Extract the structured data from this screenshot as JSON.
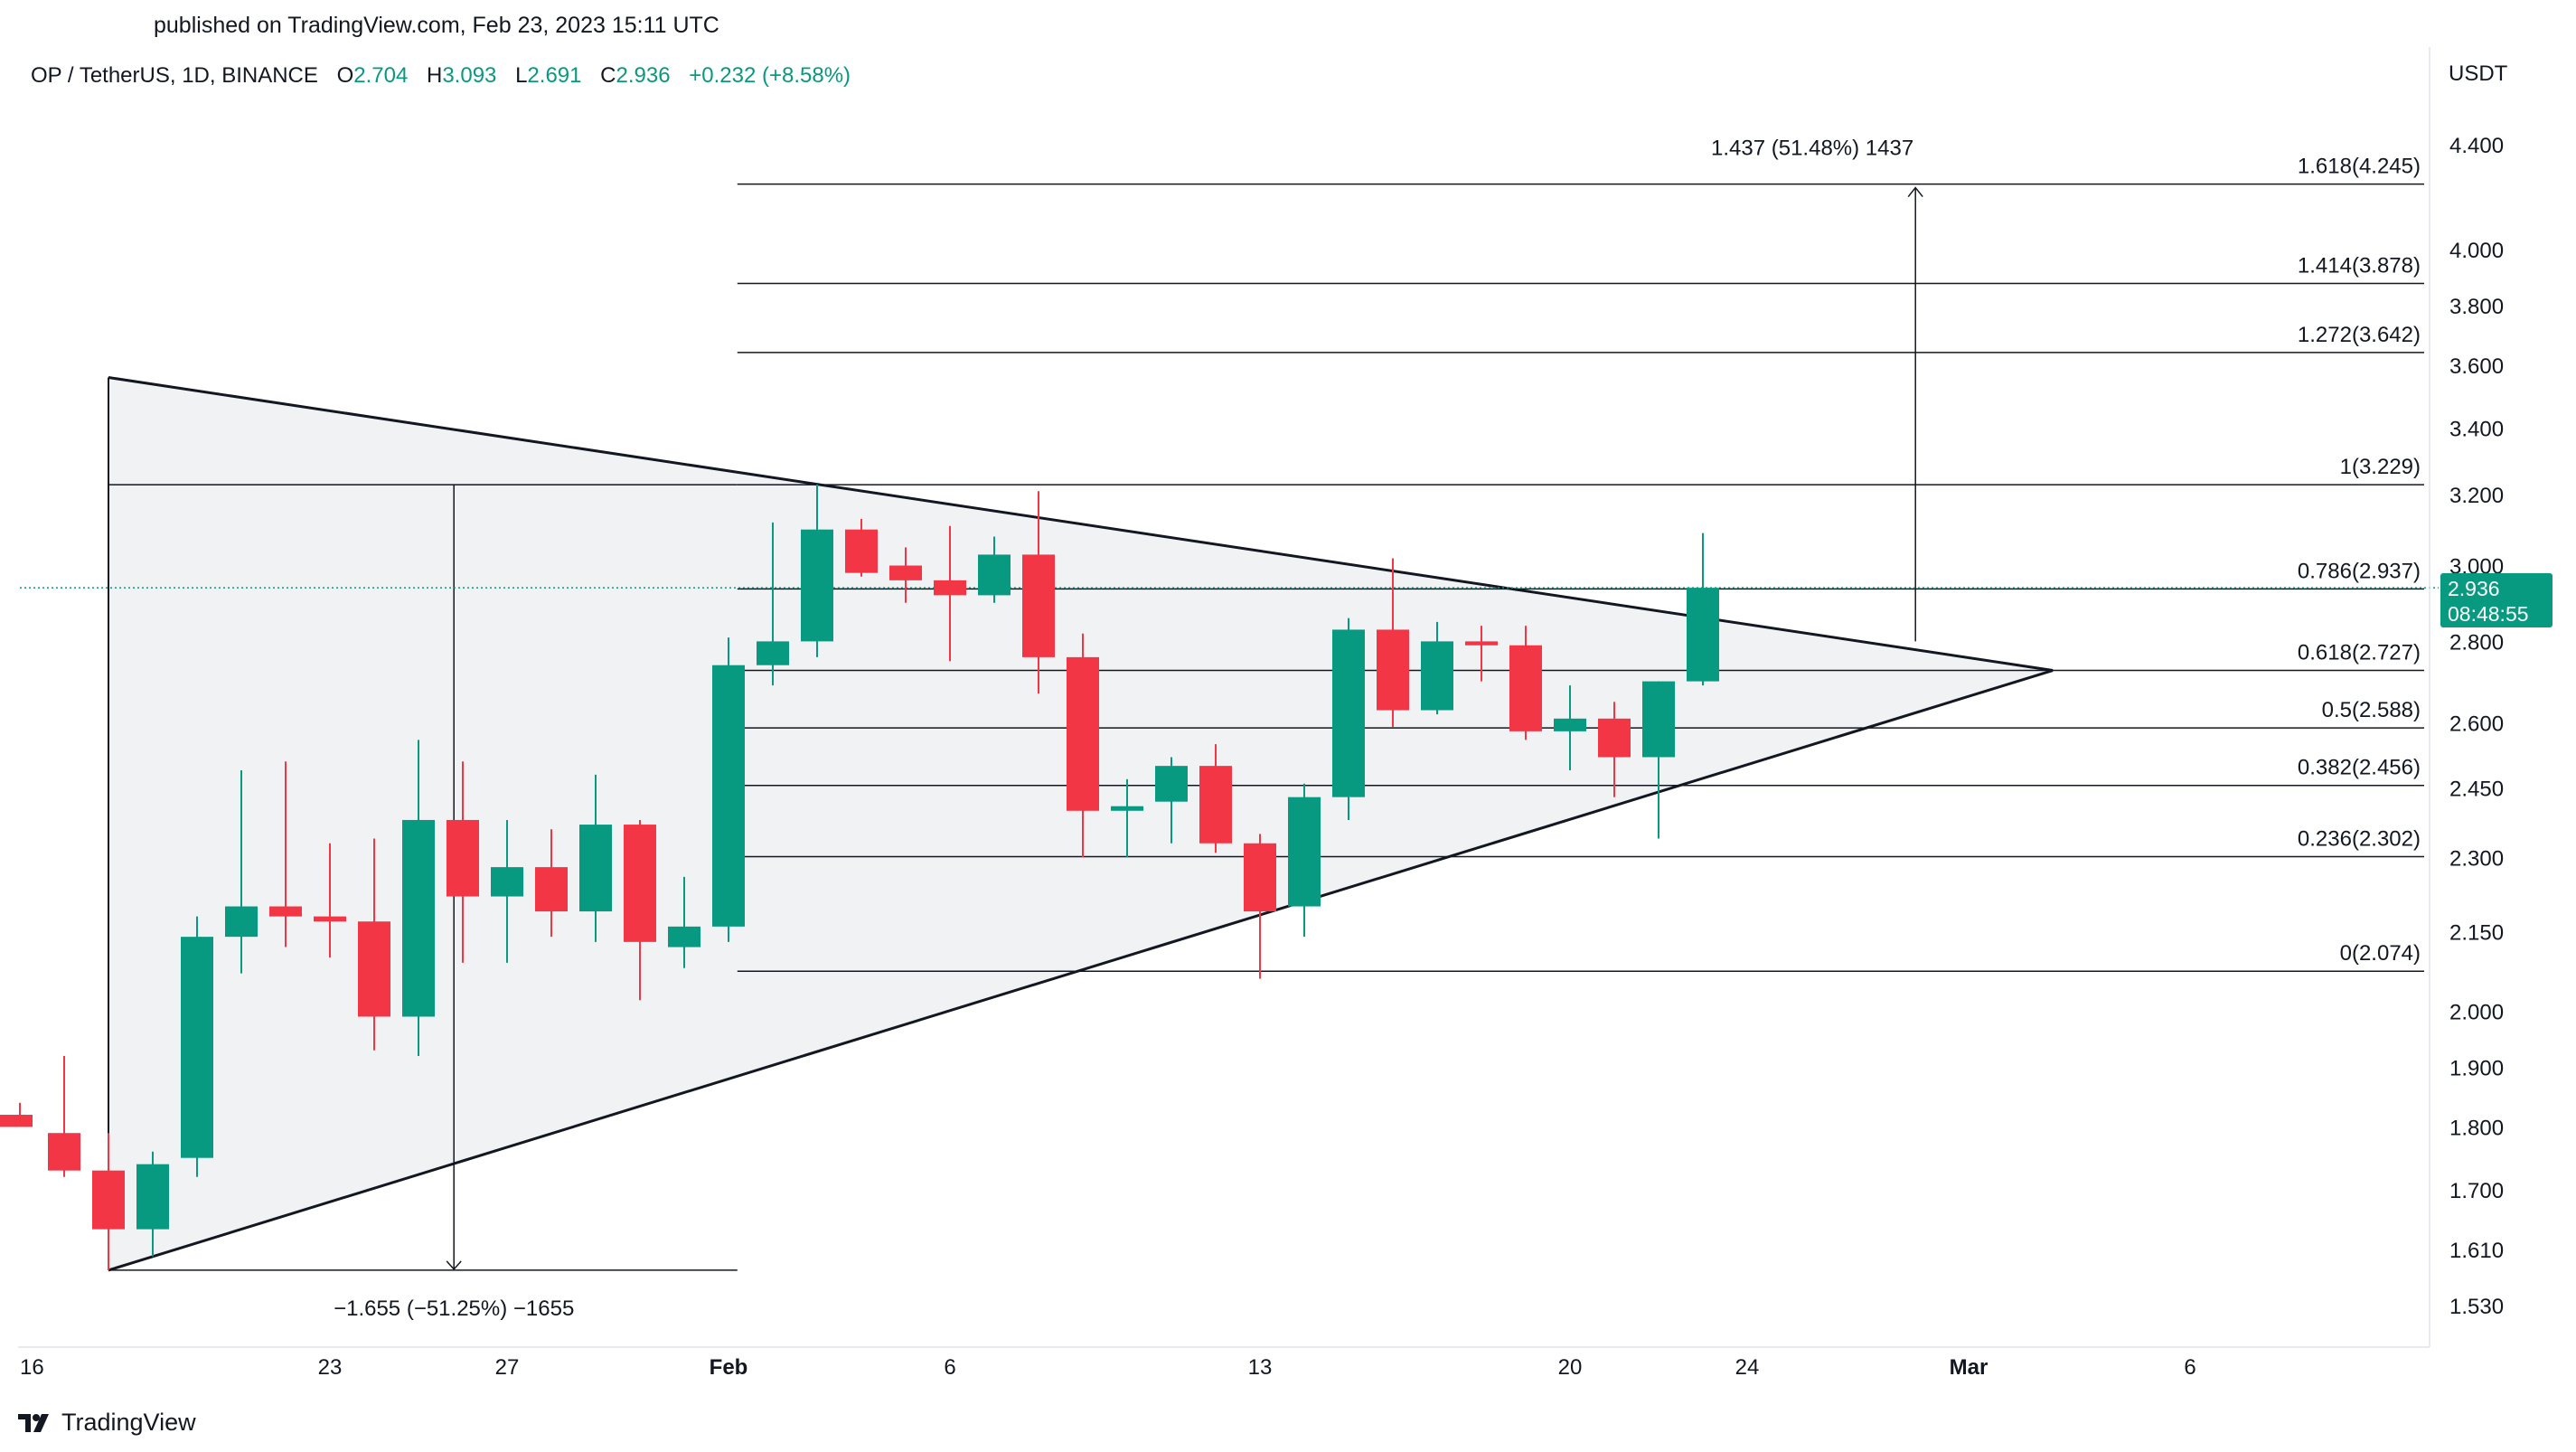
{
  "header": {
    "published": "published on TradingView.com, Feb 23, 2023 15:11 UTC",
    "symbol": "OP / TetherUS, 1D, BINANCE",
    "o_label": "O",
    "o_value": "2.704",
    "h_label": "H",
    "h_value": "3.093",
    "l_label": "L",
    "l_value": "2.691",
    "c_label": "C",
    "c_value": "2.936",
    "change": "+0.232 (+8.58%)"
  },
  "axis": {
    "currency": "USDT",
    "price_ticks": [
      "4.400",
      "4.000",
      "3.800",
      "3.600",
      "3.400",
      "3.200",
      "3.000",
      "2.800",
      "2.600",
      "2.450",
      "2.300",
      "2.150",
      "2.000",
      "1.900",
      "1.800",
      "1.700",
      "1.610",
      "1.530"
    ],
    "date_ticks": [
      {
        "label": "16",
        "day": 0,
        "bold": false
      },
      {
        "label": "23",
        "day": 7,
        "bold": false
      },
      {
        "label": "27",
        "day": 11,
        "bold": false
      },
      {
        "label": "Feb",
        "day": 16,
        "bold": true
      },
      {
        "label": "6",
        "day": 21,
        "bold": false
      },
      {
        "label": "13",
        "day": 28,
        "bold": false
      },
      {
        "label": "20",
        "day": 35,
        "bold": false
      },
      {
        "label": "24",
        "day": 39,
        "bold": false
      },
      {
        "label": "Mar",
        "day": 44,
        "bold": true
      },
      {
        "label": "6",
        "day": 49,
        "bold": false
      }
    ]
  },
  "last_price": {
    "value": "2.936",
    "countdown": "08:48:55"
  },
  "fib_levels": [
    {
      "label": "1.618(4.245)",
      "price": 4.245
    },
    {
      "label": "1.414(3.878)",
      "price": 3.878
    },
    {
      "label": "1.272(3.642)",
      "price": 3.642
    },
    {
      "label": "1(3.229)",
      "price": 3.229
    },
    {
      "label": "0.786(2.937)",
      "price": 2.937
    },
    {
      "label": "0.618(2.727)",
      "price": 2.727
    },
    {
      "label": "0.5(2.588)",
      "price": 2.588
    },
    {
      "label": "0.382(2.456)",
      "price": 2.456
    },
    {
      "label": "0.236(2.302)",
      "price": 2.302
    },
    {
      "label": "0(2.074)",
      "price": 2.074
    }
  ],
  "annotations": {
    "target_measure": "1.437 (51.48%) 1437",
    "drop_measure": "−1.655 (−51.25%) −1655"
  },
  "brand": "TradingView",
  "colors": {
    "up": "#089981",
    "down": "#f23645",
    "line": "#131722",
    "triangle_fill": "#f1f2f4",
    "axis_text": "#131722"
  },
  "chart_data": {
    "type": "candlestick",
    "title": "OP / TetherUS, 1D, BINANCE",
    "x_unit": "days since Jan 16, 2023",
    "y_scale": "log",
    "ylim": [
      1.47,
      4.6
    ],
    "candles": [
      {
        "day": 0,
        "o": 1.82,
        "h": 1.84,
        "l": 1.8,
        "c": 1.8
      },
      {
        "day": 1,
        "o": 1.79,
        "h": 1.92,
        "l": 1.72,
        "c": 1.73
      },
      {
        "day": 2,
        "o": 1.73,
        "h": 1.79,
        "l": 1.58,
        "c": 1.64
      },
      {
        "day": 3,
        "o": 1.64,
        "h": 1.76,
        "l": 1.6,
        "c": 1.74
      },
      {
        "day": 4,
        "o": 1.75,
        "h": 2.18,
        "l": 1.72,
        "c": 2.14
      },
      {
        "day": 5,
        "o": 2.14,
        "h": 2.49,
        "l": 2.07,
        "c": 2.2
      },
      {
        "day": 6,
        "o": 2.2,
        "h": 2.51,
        "l": 2.12,
        "c": 2.18
      },
      {
        "day": 7,
        "o": 2.18,
        "h": 2.33,
        "l": 2.1,
        "c": 2.17
      },
      {
        "day": 8,
        "o": 2.17,
        "h": 2.34,
        "l": 1.93,
        "c": 1.99
      },
      {
        "day": 9,
        "o": 1.99,
        "h": 2.56,
        "l": 1.92,
        "c": 2.38
      },
      {
        "day": 10,
        "o": 2.38,
        "h": 2.51,
        "l": 2.09,
        "c": 2.22
      },
      {
        "day": 11,
        "o": 2.22,
        "h": 2.38,
        "l": 2.09,
        "c": 2.28
      },
      {
        "day": 12,
        "o": 2.28,
        "h": 2.36,
        "l": 2.14,
        "c": 2.19
      },
      {
        "day": 13,
        "o": 2.19,
        "h": 2.48,
        "l": 2.13,
        "c": 2.37
      },
      {
        "day": 14,
        "o": 2.37,
        "h": 2.38,
        "l": 2.02,
        "c": 2.13
      },
      {
        "day": 15,
        "o": 2.12,
        "h": 2.26,
        "l": 2.08,
        "c": 2.16
      },
      {
        "day": 16,
        "o": 2.16,
        "h": 2.81,
        "l": 2.13,
        "c": 2.74
      },
      {
        "day": 17,
        "o": 2.74,
        "h": 3.12,
        "l": 2.69,
        "c": 2.8
      },
      {
        "day": 18,
        "o": 2.8,
        "h": 3.23,
        "l": 2.76,
        "c": 3.1
      },
      {
        "day": 19,
        "o": 3.1,
        "h": 3.13,
        "l": 2.97,
        "c": 2.98
      },
      {
        "day": 20,
        "o": 3.0,
        "h": 3.05,
        "l": 2.9,
        "c": 2.96
      },
      {
        "day": 21,
        "o": 2.96,
        "h": 3.11,
        "l": 2.75,
        "c": 2.92
      },
      {
        "day": 22,
        "o": 2.92,
        "h": 3.08,
        "l": 2.9,
        "c": 3.03
      },
      {
        "day": 23,
        "o": 3.03,
        "h": 3.21,
        "l": 2.67,
        "c": 2.76
      },
      {
        "day": 24,
        "o": 2.76,
        "h": 2.82,
        "l": 2.3,
        "c": 2.4
      },
      {
        "day": 25,
        "o": 2.4,
        "h": 2.47,
        "l": 2.3,
        "c": 2.41
      },
      {
        "day": 26,
        "o": 2.42,
        "h": 2.52,
        "l": 2.33,
        "c": 2.5
      },
      {
        "day": 27,
        "o": 2.5,
        "h": 2.55,
        "l": 2.31,
        "c": 2.33
      },
      {
        "day": 28,
        "o": 2.33,
        "h": 2.35,
        "l": 2.06,
        "c": 2.19
      },
      {
        "day": 29,
        "o": 2.2,
        "h": 2.46,
        "l": 2.14,
        "c": 2.43
      },
      {
        "day": 30,
        "o": 2.43,
        "h": 2.86,
        "l": 2.38,
        "c": 2.83
      },
      {
        "day": 31,
        "o": 2.83,
        "h": 3.02,
        "l": 2.59,
        "c": 2.63
      },
      {
        "day": 32,
        "o": 2.63,
        "h": 2.85,
        "l": 2.62,
        "c": 2.8
      },
      {
        "day": 33,
        "o": 2.8,
        "h": 2.84,
        "l": 2.7,
        "c": 2.79
      },
      {
        "day": 34,
        "o": 2.79,
        "h": 2.84,
        "l": 2.56,
        "c": 2.58
      },
      {
        "day": 35,
        "o": 2.58,
        "h": 2.69,
        "l": 2.49,
        "c": 2.61
      },
      {
        "day": 36,
        "o": 2.61,
        "h": 2.65,
        "l": 2.43,
        "c": 2.52
      },
      {
        "day": 37,
        "o": 2.52,
        "h": 2.7,
        "l": 2.34,
        "c": 2.7
      },
      {
        "day": 38,
        "o": 2.7,
        "h": 3.09,
        "l": 2.69,
        "c": 2.94
      }
    ]
  }
}
